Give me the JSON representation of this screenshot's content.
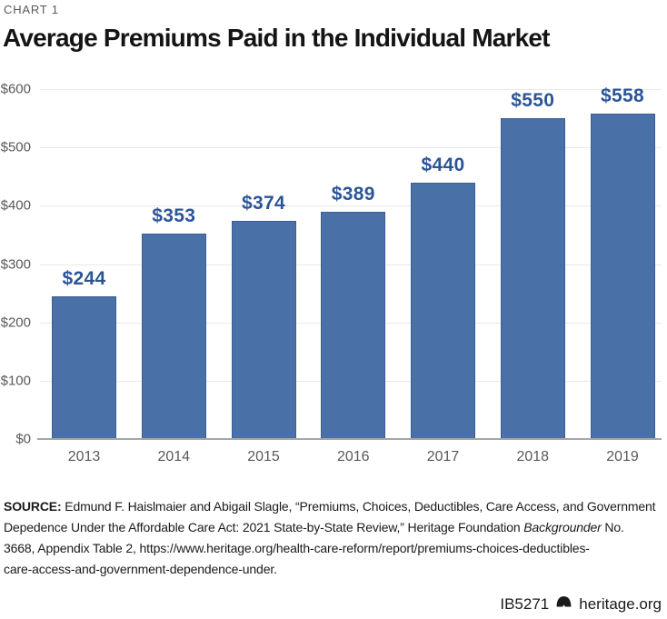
{
  "header": {
    "kicker": "CHART 1",
    "title": "Average Premiums Paid in the Individual Market"
  },
  "chart_data": {
    "type": "bar",
    "title": "Average Premiums Paid in the Individual Market",
    "categories": [
      "2013",
      "2014",
      "2015",
      "2016",
      "2017",
      "2018",
      "2019"
    ],
    "values": [
      244,
      353,
      374,
      389,
      440,
      550,
      558
    ],
    "bar_labels": [
      "$244",
      "$353",
      "$374",
      "$389",
      "$440",
      "$550",
      "$558"
    ],
    "xlabel": "",
    "ylabel": "",
    "ylim": [
      0,
      600
    ],
    "yticks": [
      0,
      100,
      200,
      300,
      400,
      500,
      600
    ],
    "ytick_labels": [
      "$0",
      "$100",
      "$200",
      "$300",
      "$400",
      "$500",
      "$600"
    ],
    "grid": true,
    "legend": false,
    "colors": {
      "bar_fill": "#4a70a8",
      "bar_edge": "#3a5e94",
      "bar_label": "#2b5597",
      "axis_text": "#595959",
      "gridline": "#e9e9e9",
      "baseline": "#a6a6a6"
    }
  },
  "source": {
    "label": "SOURCE:",
    "line1": " Edmund F. Haislmaier and Abigail Slagle, “Premiums, Choices, Deductibles, Care Access, and Government",
    "line2_pre": "Depedence Under the Affordable Care Act: 2021 State-by-State Review,” Heritage Foundation ",
    "line2_italic": "Backgrounder",
    "line2_post": " No.",
    "line3": "3668, Appendix Table 2, https://www.heritage.org/health-care-reform/report/premiums-choices-deductibles-",
    "line4": "care-access-and-government-dependence-under."
  },
  "footer": {
    "doc_id": "IB5271",
    "logo_icon": "liberty-bell-icon",
    "site": "heritage.org"
  }
}
